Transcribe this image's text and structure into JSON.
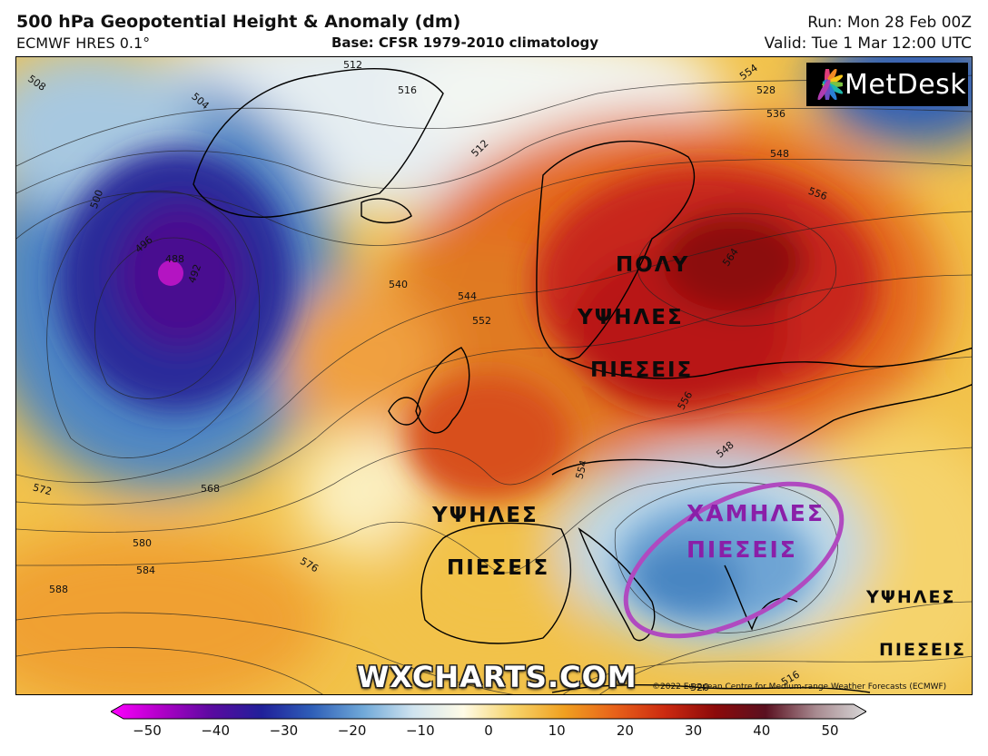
{
  "header": {
    "title": "500 hPa Geopotential Height & Anomaly (dm)",
    "model": "ECMWF HRES 0.1°",
    "base": "Base: CFSR 1979-2010 climatology",
    "run": "Run: Mon 28 Feb 00Z",
    "valid": "Valid: Tue 1 Mar 12:00 UTC"
  },
  "logo": {
    "text": "MetDesk",
    "icon": "metdesk-flower-icon"
  },
  "contours": {
    "labels": [
      "508",
      "504",
      "500",
      "512",
      "512",
      "516",
      "488",
      "492",
      "496",
      "540",
      "544",
      "552",
      "556",
      "564",
      "554",
      "528",
      "536",
      "548",
      "556",
      "572",
      "568",
      "580",
      "584",
      "588",
      "576",
      "554",
      "548",
      "516",
      "520"
    ]
  },
  "annotations": {
    "poly": "ΠΟΛΥ",
    "ypsiles_north": "ΥΨΗΛΕΣ",
    "pieseis_north": "ΠΙΕΣΕΙΣ",
    "ypsiles_west": "ΥΨΗΛΕΣ",
    "pieseis_west": "ΠΙΕΣΕΙΣ",
    "chamiles": "ΧΑΜΗΛΕΣ",
    "pieseis_low": "ΠΙΕΣΕΙΣ",
    "ypsiles_east": "ΥΨΗΛΕΣ",
    "pieseis_east": "ΠΙΕΣΕΙΣ"
  },
  "watermark": "WXCHARTS.COM",
  "copyright": "©2022 European Centre for Medium-range Weather Forecasts (ECMWF)",
  "colorbar": {
    "ticks": [
      "−50",
      "−40",
      "−30",
      "−20",
      "−10",
      "0",
      "10",
      "20",
      "30",
      "40",
      "50"
    ],
    "colors": [
      "#ff00ff",
      "#b000c8",
      "#5a0aa0",
      "#20209a",
      "#2f5fb8",
      "#6fa8d8",
      "#cfe3ef",
      "#fffbe6",
      "#f6d36a",
      "#f0a020",
      "#e8621a",
      "#cc2a10",
      "#8c0a0a",
      "#5a1020",
      "#a88a90",
      "#d8d8d8"
    ]
  },
  "colors": {
    "ellipse": "#b04ac0",
    "low_label": "#8a1fa8"
  }
}
